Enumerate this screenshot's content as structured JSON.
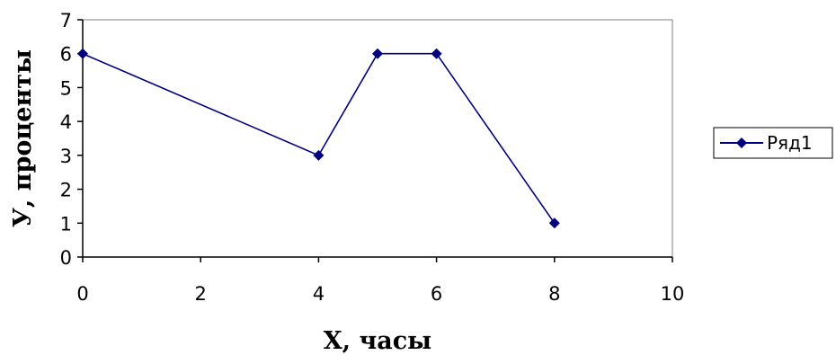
{
  "chart_data": {
    "type": "line",
    "title": "",
    "xlabel": "X, часы",
    "ylabel": "У, проценты",
    "xlim": [
      0,
      10
    ],
    "ylim": [
      0,
      7
    ],
    "x_ticks": [
      "0",
      "2",
      "4",
      "6",
      "8",
      "10"
    ],
    "y_ticks": [
      "0",
      "1",
      "2",
      "3",
      "4",
      "5",
      "6",
      "7"
    ],
    "grid": false,
    "legend_position": "right",
    "series": [
      {
        "name": "Ряд1",
        "color": "#000080",
        "marker": "diamond",
        "points": [
          {
            "x": 0,
            "y": 6
          },
          {
            "x": 4,
            "y": 3
          },
          {
            "x": 5,
            "y": 6
          },
          {
            "x": 6,
            "y": 6
          },
          {
            "x": 8,
            "y": 1
          }
        ]
      }
    ]
  }
}
